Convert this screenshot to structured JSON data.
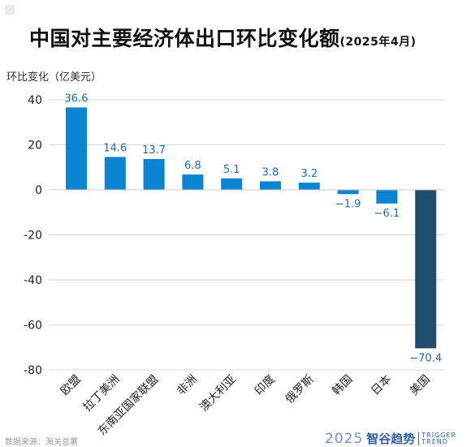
{
  "title": {
    "main": "中国对主要经济体出口环比变化额",
    "sub": "(2025年4月)"
  },
  "colors": {
    "positive_bar": "#0a85d1",
    "negative_bar": "#0a85d1",
    "highlight_bar": "#1f4e70",
    "grid": "#d9d9d9",
    "axis_text": "#222222",
    "value_text_positive": "#1a6fa8",
    "value_text_negative": "#1a6fa8"
  },
  "chart_data": {
    "type": "bar",
    "title": "中国对主要经济体出口环比变化额",
    "subtitle": "(2025年4月)",
    "ylabel": "环比变化（亿美元）",
    "xlabel": "",
    "ylim": [
      -80,
      40
    ],
    "yticks": [
      40,
      20,
      0,
      -20,
      -40,
      -60,
      -80
    ],
    "ytick_labels": [
      "40",
      "20",
      "0",
      "-20",
      "-40",
      "-60",
      "-80"
    ],
    "categories": [
      "欧盟",
      "拉丁美洲",
      "东南亚国家联盟",
      "非洲",
      "澳大利亚",
      "印度",
      "俄罗斯",
      "韩国",
      "日本",
      "美国"
    ],
    "values": [
      36.6,
      14.6,
      13.7,
      6.8,
      5.1,
      3.8,
      3.2,
      -1.9,
      -6.1,
      -70.4
    ],
    "value_labels": [
      "36.6",
      "14.6",
      "13.7",
      "6.8",
      "5.1",
      "3.8",
      "3.2",
      "−1.9",
      "−6.1",
      "−70.4"
    ],
    "highlight_index": 9,
    "grid": true,
    "grid_axis": "y",
    "legend": "none"
  },
  "source_text": "数据来源：海关总署",
  "brand": {
    "year": "2025",
    "name": "智谷趋势",
    "en_line1": "TRIGGER",
    "en_line2": "TREND"
  }
}
